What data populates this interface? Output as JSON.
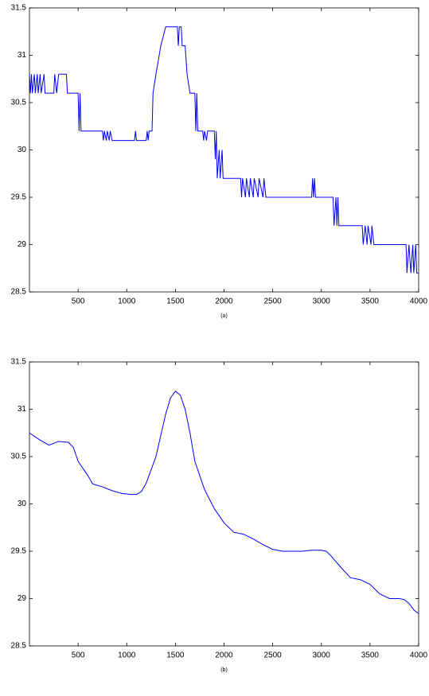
{
  "chart_data": [
    {
      "type": "line",
      "caption": "(a)",
      "color": "#0000ff",
      "xlim": [
        0,
        4000
      ],
      "xticks": [
        500,
        1000,
        1500,
        2000,
        2500,
        3000,
        3500,
        4000
      ],
      "ylim": [
        28.5,
        31.5
      ],
      "yticks": [
        28.5,
        29,
        29.5,
        30,
        30.5,
        31,
        31.5
      ],
      "x": [
        0,
        10,
        20,
        30,
        50,
        60,
        80,
        90,
        110,
        120,
        150,
        160,
        250,
        260,
        280,
        300,
        380,
        390,
        500,
        510,
        520,
        530,
        750,
        760,
        770,
        790,
        800,
        820,
        830,
        850,
        1080,
        1090,
        1100,
        1200,
        1210,
        1220,
        1230,
        1260,
        1270,
        1300,
        1350,
        1400,
        1520,
        1530,
        1540,
        1560,
        1570,
        1600,
        1620,
        1650,
        1700,
        1710,
        1720,
        1730,
        1780,
        1790,
        1800,
        1820,
        1830,
        1900,
        1910,
        1920,
        1930,
        1950,
        1960,
        1980,
        1990,
        2170,
        2180,
        2190,
        2220,
        2230,
        2260,
        2270,
        2300,
        2310,
        2350,
        2360,
        2400,
        2410,
        2430,
        2900,
        2910,
        2920,
        2930,
        2940,
        3120,
        3130,
        3150,
        3160,
        3170,
        3180,
        3420,
        3430,
        3450,
        3470,
        3480,
        3510,
        3520,
        3540,
        3870,
        3880,
        3900,
        3920,
        3940,
        3950,
        3970,
        3980,
        4000
      ],
      "values": [
        30.8,
        30.6,
        30.8,
        30.6,
        30.8,
        30.6,
        30.8,
        30.6,
        30.8,
        30.6,
        30.8,
        30.6,
        30.6,
        30.8,
        30.6,
        30.8,
        30.8,
        30.6,
        30.6,
        30.2,
        30.6,
        30.2,
        30.2,
        30.1,
        30.2,
        30.1,
        30.2,
        30.1,
        30.2,
        30.1,
        30.1,
        30.2,
        30.1,
        30.1,
        30.2,
        30.1,
        30.2,
        30.2,
        30.6,
        30.8,
        31.1,
        31.3,
        31.3,
        31.1,
        31.3,
        31.3,
        31.1,
        31.1,
        30.8,
        30.6,
        30.6,
        30.2,
        30.6,
        30.2,
        30.2,
        30.1,
        30.2,
        30.1,
        30.2,
        30.2,
        29.9,
        30.2,
        29.7,
        30,
        29.7,
        30,
        29.7,
        29.7,
        29.5,
        29.7,
        29.5,
        29.7,
        29.5,
        29.7,
        29.5,
        29.7,
        29.5,
        29.7,
        29.5,
        29.7,
        29.5,
        29.5,
        29.7,
        29.5,
        29.7,
        29.5,
        29.5,
        29.2,
        29.5,
        29.2,
        29.5,
        29.2,
        29.2,
        29,
        29.2,
        29,
        29.2,
        29,
        29.2,
        29,
        29,
        28.7,
        29,
        28.7,
        29,
        28.7,
        29,
        28.7,
        28.7
      ]
    },
    {
      "type": "line",
      "caption": "(b)",
      "color": "#0000ff",
      "xlim": [
        0,
        4000
      ],
      "xticks": [
        500,
        1000,
        1500,
        2000,
        2500,
        3000,
        3500,
        4000
      ],
      "ylim": [
        28.5,
        31.5
      ],
      "yticks": [
        28.5,
        29,
        29.5,
        30,
        30.5,
        31,
        31.5
      ],
      "x": [
        0,
        100,
        200,
        300,
        400,
        450,
        500,
        600,
        650,
        750,
        850,
        950,
        1050,
        1100,
        1150,
        1200,
        1300,
        1400,
        1450,
        1500,
        1550,
        1600,
        1650,
        1700,
        1750,
        1800,
        1900,
        2000,
        2100,
        2200,
        2300,
        2400,
        2500,
        2600,
        2700,
        2800,
        2900,
        3000,
        3050,
        3100,
        3200,
        3300,
        3400,
        3500,
        3600,
        3700,
        3800,
        3850,
        3900,
        3950,
        4000
      ],
      "values": [
        30.75,
        30.68,
        30.62,
        30.66,
        30.65,
        30.6,
        30.45,
        30.3,
        30.21,
        30.18,
        30.14,
        30.11,
        30.1,
        30.1,
        30.13,
        30.22,
        30.5,
        30.95,
        31.12,
        31.19,
        31.15,
        31,
        30.75,
        30.45,
        30.3,
        30.15,
        29.95,
        29.8,
        29.7,
        29.68,
        29.63,
        29.57,
        29.52,
        29.5,
        29.5,
        29.5,
        29.51,
        29.51,
        29.5,
        29.45,
        29.33,
        29.22,
        29.2,
        29.15,
        29.05,
        29,
        29,
        28.99,
        28.95,
        28.88,
        28.84
      ]
    }
  ]
}
